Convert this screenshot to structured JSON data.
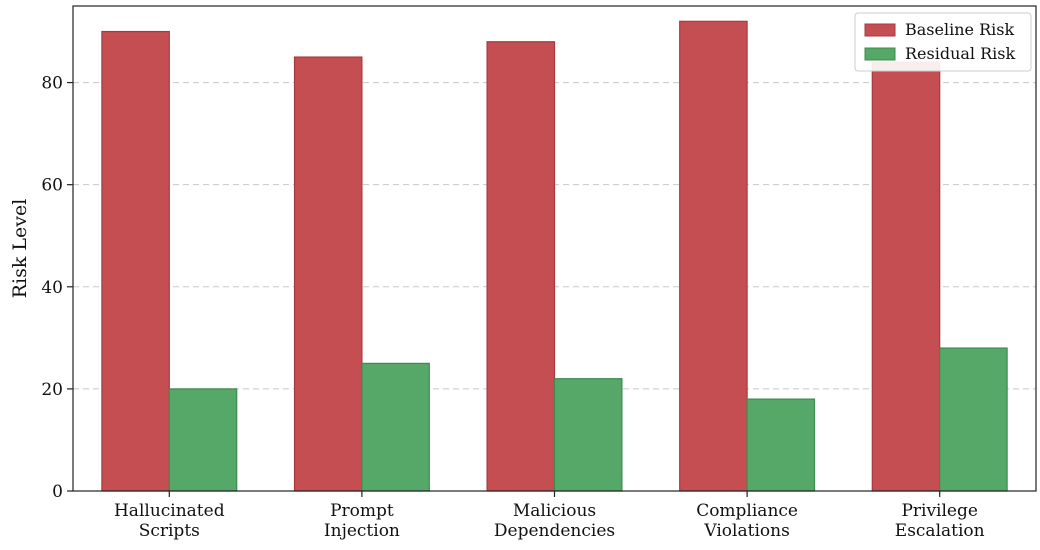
{
  "chart_data": {
    "type": "bar",
    "title": "",
    "xlabel": "",
    "ylabel": "Risk Level",
    "ylim": [
      0,
      95
    ],
    "yticks": [
      0,
      20,
      40,
      60,
      80
    ],
    "grid": "y-dashed",
    "legend_position": "top-right",
    "categories": [
      [
        "Hallucinated",
        "Scripts"
      ],
      [
        "Prompt",
        "Injection"
      ],
      [
        "Malicious",
        "Dependencies"
      ],
      [
        "Compliance",
        "Violations"
      ],
      [
        "Privilege",
        "Escalation"
      ]
    ],
    "series": [
      {
        "name": "Baseline Risk",
        "color": "#c44e52",
        "values": [
          90,
          85,
          88,
          92,
          84
        ]
      },
      {
        "name": "Residual Risk",
        "color": "#55a868",
        "values": [
          20,
          25,
          22,
          18,
          28
        ]
      }
    ]
  }
}
